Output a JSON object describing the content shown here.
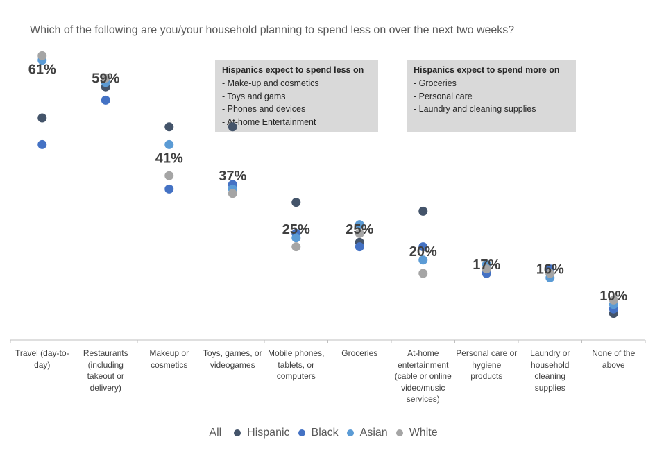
{
  "title": "Which of the following are you/your household planning to spend less on over the next two weeks?",
  "boxes": {
    "less": {
      "heading_prefix": "Hispanics expect to spend ",
      "heading_emph": "less",
      "heading_suffix": " on",
      "items": [
        "- Make-up and cosmetics",
        "- Toys and gams",
        "- Phones and devices",
        "- At-home Entertainment"
      ]
    },
    "more": {
      "heading_prefix": "Hispanics expect to spend ",
      "heading_emph": "more",
      "heading_suffix": " on",
      "items": [
        "- Groceries",
        "- Personal care",
        "- Laundry and cleaning supplies"
      ]
    }
  },
  "chart_data": {
    "type": "scatter",
    "categories": [
      "Travel (day-to-day)",
      "Restaurants (including takeout or delivery)",
      "Makeup or cosmetics",
      "Toys, games, or videogames",
      "Mobile phones, tablets, or computers",
      "Groceries",
      "At-home entertainment (cable or online video/music services)",
      "Personal care or hygiene products",
      "Laundry or household cleaning supplies",
      "None of the above"
    ],
    "all_labels": [
      "61%",
      "59%",
      "41%",
      "37%",
      "25%",
      "25%",
      "20%",
      "17%",
      "16%",
      "10%"
    ],
    "all_values": [
      61,
      59,
      41,
      37,
      25,
      25,
      20,
      17,
      16,
      10
    ],
    "series": [
      {
        "name": "Hispanic",
        "color": "#44546a",
        "values": [
          50,
          57,
          48,
          48,
          31,
          22,
          29,
          15,
          15,
          6
        ]
      },
      {
        "name": "Black",
        "color": "#4472c4",
        "values": [
          44,
          54,
          34,
          35,
          24,
          21,
          21,
          15,
          16,
          7
        ]
      },
      {
        "name": "Asian",
        "color": "#5b9bd5",
        "values": [
          63,
          58,
          44,
          34,
          23,
          26,
          18,
          17,
          14,
          8
        ]
      },
      {
        "name": "White",
        "color": "#a5a5a5",
        "values": [
          64,
          59,
          37,
          33,
          21,
          24,
          15,
          16,
          15,
          9
        ]
      }
    ],
    "legend_lead": "All",
    "ylim": [
      0,
      70
    ]
  }
}
